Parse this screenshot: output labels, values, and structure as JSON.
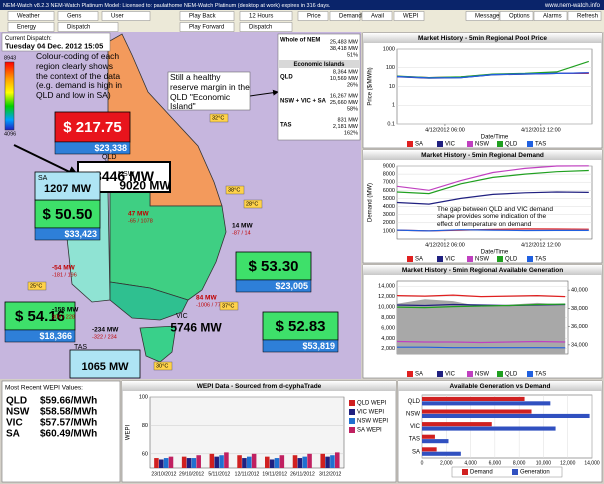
{
  "title_bar": {
    "left": "NEM-Watch v8.2.3   NEM-Watch Platinum Model:   Licensed to: paulathome   NEM-Watch Platinum (desktop at work) expires in 316 days.",
    "right": "www.nem-watch.info"
  },
  "toolbar": {
    "row1": [
      "Weather",
      "Gens",
      "User"
    ],
    "row2": [
      "Energy",
      "Dispatch"
    ],
    "playback": [
      "Play Back",
      "Play Forward"
    ],
    "period": "12 Hours",
    "interval": "Dispatch",
    "views": [
      "Price",
      "Demand",
      "Avail",
      "WEPI"
    ],
    "buttons": [
      "Messages",
      "Options",
      "Alarms",
      "Refresh"
    ]
  },
  "dispatch": {
    "label": "Current Dispatch:",
    "time": "Tuesday 04 Dec. 2012 15:05"
  },
  "scale": {
    "max": 8943,
    "min": 4096
  },
  "annotations": [
    "Colour-coding of each region clearly shows the context of the data (e.g. demand is high in QLD and low in SA)",
    "Still a healthy reserve margin in the QLD \"Economic Island\""
  ],
  "regions": [
    {
      "name": "QLD",
      "demand": "8446 MW",
      "price": "$ 217.75",
      "value": "$23,338",
      "price_color": "#e8141c"
    },
    {
      "name": "SA",
      "demand": "1207 MW",
      "price": "$ 50.50",
      "value": "$33,423",
      "price_color": "#3ee06a"
    },
    {
      "name": "NSW",
      "demand": "9020 MW",
      "price": "$ 53.30",
      "value": "$23,005",
      "price_color": "#3ee06a"
    },
    {
      "name": "VIC",
      "demand": "5746 MW",
      "price": "$ 52.83",
      "value": "$53,819",
      "price_color": "#3ee06a"
    },
    {
      "name": "TAS",
      "demand": "1065 MW",
      "price": "$ 54.16",
      "value": "$18,366",
      "price_color": "#3ee06a"
    }
  ],
  "reserve": {
    "title": "Whole of NEM",
    "values": [
      "25,483 MW",
      "38,418 MW",
      "51%"
    ],
    "islands_label": "Economic Islands",
    "islands": [
      {
        "name": "QLD",
        "values": [
          "8,364 MW",
          "10,569 MW",
          "26%"
        ]
      },
      {
        "name": "NSW + VIC + SA",
        "values": [
          "16,267 MW",
          "25,660 MW",
          "58%"
        ]
      },
      {
        "name": "TAS",
        "values": [
          "831 MW",
          "2,181 MW",
          "162%"
        ]
      }
    ]
  },
  "interconnectors": [
    {
      "flow": "47 MW",
      "limits": "-65 / 1078"
    },
    {
      "flow": "14 MW",
      "limits": "-87 / 14"
    },
    {
      "flow": "-54 MW",
      "limits": "-181 / 196"
    },
    {
      "flow": "-158 MW",
      "limits": "300 / 228"
    },
    {
      "flow": "84 MW",
      "limits": "-1006 / 778"
    },
    {
      "flow": "-234 MW",
      "limits": "-322 / 234"
    }
  ],
  "temperatures": [
    "32°C",
    "38°C",
    "28°C",
    "37°C",
    "30°C",
    "25°C"
  ],
  "charts": [
    {
      "type": "line",
      "title": "Market History - 5min Regional Pool Price",
      "y_label": "Price ($/MWh)",
      "x_label": "Date/Time",
      "log": true,
      "x": [
        3,
        5,
        7,
        9,
        11,
        13,
        15
      ],
      "xlim": [
        3,
        15.2
      ],
      "xticks": [
        {
          "value": 6,
          "label": "4/12/2012 06:00"
        },
        {
          "value": 12,
          "label": "4/12/2012 12:00"
        }
      ],
      "ylim": [
        0.1,
        1000
      ],
      "yticks": [
        0.1,
        1,
        10,
        100,
        1000
      ],
      "grid": true,
      "series": [
        {
          "name": "SA",
          "color": "#e02020",
          "values": [
            35,
            30,
            32,
            45,
            48,
            50,
            50
          ]
        },
        {
          "name": "VIC",
          "color": "#202080",
          "values": [
            33,
            28,
            30,
            42,
            46,
            50,
            53
          ]
        },
        {
          "name": "NSW",
          "color": "#c040c0",
          "values": [
            34,
            29,
            31,
            44,
            47,
            50,
            53
          ]
        },
        {
          "name": "QLD",
          "color": "#20a020",
          "values": [
            36,
            30,
            33,
            46,
            50,
            60,
            218
          ]
        },
        {
          "name": "TAS",
          "color": "#2060e0",
          "values": [
            34,
            29,
            30,
            43,
            47,
            50,
            54
          ]
        }
      ]
    },
    {
      "type": "line",
      "title": "Market History - 5min Regional Demand",
      "y_label": "Demand (MW)",
      "x_label": "Date/Time",
      "annotation": "The gap between QLD and VIC demand shape provides some indication of the effect of temperature on demand",
      "x": [
        3,
        5,
        7,
        9,
        11,
        13,
        15
      ],
      "xlim": [
        3,
        15.2
      ],
      "xticks": [
        {
          "value": 6,
          "label": "4/12/2012 06:00"
        },
        {
          "value": 12,
          "label": "4/12/2012 12:00"
        }
      ],
      "ylim": [
        0,
        9000
      ],
      "yticks": [
        1000,
        2000,
        3000,
        4000,
        5000,
        6000,
        7000,
        8000,
        9000
      ],
      "grid": true,
      "series": [
        {
          "name": "SA",
          "color": "#e02020",
          "values": [
            1100,
            1000,
            1100,
            1200,
            1250,
            1230,
            1207
          ]
        },
        {
          "name": "VIC",
          "color": "#202080",
          "values": [
            4500,
            4300,
            5000,
            5500,
            5700,
            5800,
            5746
          ]
        },
        {
          "name": "NSW",
          "color": "#c040c0",
          "values": [
            6500,
            6000,
            7200,
            8200,
            8700,
            9000,
            9020
          ]
        },
        {
          "name": "QLD",
          "color": "#20a020",
          "values": [
            5800,
            5600,
            6800,
            7600,
            8000,
            8300,
            8446
          ]
        },
        {
          "name": "TAS",
          "color": "#2060e0",
          "values": [
            1100,
            1000,
            1150,
            1100,
            1050,
            1060,
            1065
          ]
        }
      ]
    },
    {
      "type": "line",
      "title": "Market History - 5min Regional Available Generation",
      "x": [
        3,
        5,
        7,
        9,
        11,
        13,
        15
      ],
      "xlim": [
        3,
        15.2
      ],
      "ylim": [
        1000,
        15000
      ],
      "yticks": [
        {
          "value": 2000,
          "label": "2,000"
        },
        {
          "value": 4000,
          "label": "4,000"
        },
        {
          "value": 6000,
          "label": "6,000"
        },
        {
          "value": 8000,
          "label": "8,000"
        },
        {
          "value": 10000,
          "label": "10,000"
        },
        {
          "value": 12000,
          "label": "12,000"
        },
        {
          "value": 14000,
          "label": "14,000"
        }
      ],
      "y2lim": [
        33000,
        41000
      ],
      "y2ticks": [
        {
          "value": 34000,
          "label": "34,000"
        },
        {
          "value": 36000,
          "label": "36,000"
        },
        {
          "value": 38000,
          "label": "38,000"
        },
        {
          "value": 40000,
          "label": "40,000"
        }
      ],
      "grid": true,
      "series": [
        {
          "color": "#a8a8a8",
          "axis": "y2",
          "area": true,
          "values": [
            38500,
            39000,
            38800,
            38200,
            38400,
            38600,
            38418
          ]
        },
        {
          "name": "SA",
          "color": "#e02020",
          "values": [
            12200,
            12100,
            12300,
            12000,
            12100,
            12200,
            12000
          ]
        },
        {
          "name": "VIC",
          "color": "#202080",
          "values": [
            10400,
            10300,
            10500,
            10400,
            10300,
            10400,
            10500
          ]
        },
        {
          "name": "NSW",
          "color": "#c040c0",
          "values": [
            3400,
            3300,
            3300,
            3200,
            3300,
            3400,
            3300
          ]
        },
        {
          "name": "QLD",
          "color": "#20a020",
          "values": [
            10000,
            9900,
            10100,
            10200,
            10300,
            10500,
            10569
          ]
        },
        {
          "name": "TAS",
          "color": "#2060e0",
          "values": [
            2300,
            2300,
            2200,
            2200,
            2200,
            2200,
            2181
          ]
        }
      ]
    },
    {
      "type": "bar",
      "title": "WEPI Data - Sourced from d-cyphaTrade",
      "y_label": "WEPI",
      "categories": [
        "23/10/2012",
        "29/10/2012",
        "5/11/2012",
        "12/11/2012",
        "19/11/2012",
        "26/11/2012",
        "3/12/2012"
      ],
      "ylim": [
        50,
        100
      ],
      "yticks": [
        60,
        80,
        100
      ],
      "series": [
        {
          "name": "QLD WEPI",
          "color": "#d02020",
          "values": [
            57,
            58,
            60,
            59,
            58,
            59,
            60
          ]
        },
        {
          "name": "VIC WEPI",
          "color": "#202080",
          "values": [
            56,
            57,
            58,
            57,
            56,
            57,
            58
          ]
        },
        {
          "name": "NSW WEPI",
          "color": "#2070d0",
          "values": [
            57,
            57,
            59,
            58,
            57,
            58,
            59
          ]
        },
        {
          "name": "SA WEPI",
          "color": "#c02060",
          "values": [
            58,
            59,
            61,
            60,
            59,
            60,
            61
          ]
        }
      ]
    },
    {
      "type": "hbar",
      "title": "Available Generation vs Demand",
      "categories": [
        "QLD",
        "NSW",
        "VIC",
        "TAS",
        "SA"
      ],
      "xlim": [
        0,
        14000
      ],
      "xticks": [
        0,
        {
          "value": 2000,
          "label": "2,000"
        },
        {
          "value": 4000,
          "label": "4,000"
        },
        {
          "value": 6000,
          "label": "6,000"
        },
        {
          "value": 8000,
          "label": "8,000"
        },
        {
          "value": 10000,
          "label": "10,000"
        },
        {
          "value": 12000,
          "label": "12,000"
        },
        {
          "value": 14000,
          "label": "14,000"
        }
      ],
      "series": [
        {
          "name": "Demand",
          "color": "#d02020",
          "values": [
            8446,
            9020,
            5746,
            1065,
            1207
          ]
        },
        {
          "name": "Generation",
          "color": "#3050c0",
          "values": [
            10569,
            13800,
            11000,
            2181,
            3200
          ]
        }
      ]
    }
  ],
  "wepi_values": {
    "title": "Most Recent WEPI Values:",
    "rows": [
      {
        "region": "QLD",
        "value": "$59.66/MWh"
      },
      {
        "region": "NSW",
        "value": "$58.58/MWh"
      },
      {
        "region": "VIC",
        "value": "$57.57/MWh"
      },
      {
        "region": "SA",
        "value": "$60.49/MWh"
      }
    ]
  }
}
